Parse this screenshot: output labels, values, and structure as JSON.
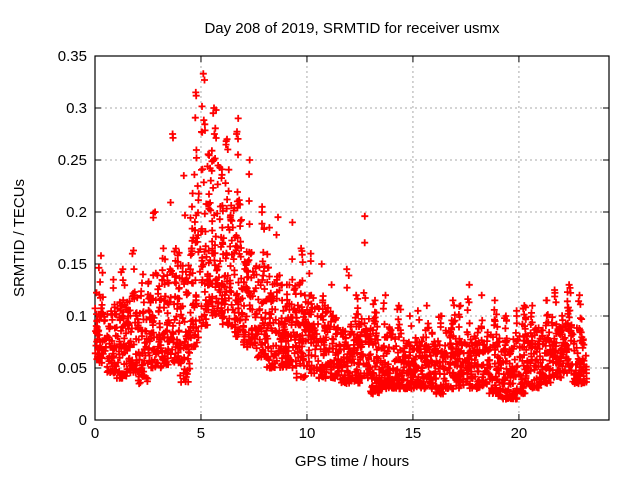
{
  "figure": {
    "title": "Day 208 of 2019, SRMTID for receiver usmx",
    "xlabel": "GPS time / hours",
    "ylabel": "SRMTID / TECUs"
  },
  "chart_data": {
    "type": "scatter",
    "title": "Day 208 of 2019, SRMTID for receiver usmx",
    "xlabel": "GPS time / hours",
    "ylabel": "SRMTID / TECUs",
    "marker": "plus",
    "marker_color": "#ff0000",
    "background": "#ffffff",
    "grid": true,
    "grid_color": "#a9a9a9",
    "legend": "none",
    "xlim": [
      0,
      24.25
    ],
    "ylim": [
      0,
      0.35
    ],
    "xticks": [
      0,
      5,
      10,
      15,
      20
    ],
    "yticks": [
      0,
      0.05,
      0.1,
      0.15,
      0.2,
      0.25,
      0.3,
      0.35
    ],
    "xtick_labels": [
      "0",
      "5",
      "10",
      "15",
      "20"
    ],
    "ytick_labels": [
      "0",
      "0.05",
      "0.1",
      "0.15",
      "0.2",
      "0.25",
      "0.3",
      "0.35"
    ],
    "description": "Dense cloud of ~2700 red plus markers. Activity is moderate 0-2.5 h (band 0.04-0.13), strongly enhanced 2.5-7.5 h with narrow columns peaking at 0.33 near 5.1 h, ~0.30 near 5.7 h, ~0.29 near 6.8 h and ~0.275 near 3.6 h, then decays 8-10 h; quiet 10-22 h with band 0.02-0.10, an isolated spike to ~0.196 at 12.8 h, a mild rise to ~0.125 near 22.3 h; data ends ~23.2 h with a lone low point ~0.02.",
    "profile_columns": [
      "t_start_h",
      "t_end_h",
      "n_points",
      "band_low_TECU",
      "band_high_TECU",
      "max_TECU"
    ],
    "profile": [
      [
        0.0,
        0.5,
        60,
        0.055,
        0.125,
        0.158
      ],
      [
        0.5,
        1.0,
        58,
        0.045,
        0.105,
        0.135
      ],
      [
        1.0,
        1.5,
        58,
        0.04,
        0.115,
        0.145
      ],
      [
        1.5,
        2.0,
        58,
        0.045,
        0.12,
        0.163
      ],
      [
        2.0,
        2.5,
        58,
        0.035,
        0.11,
        0.14
      ],
      [
        2.5,
        3.0,
        62,
        0.05,
        0.145,
        0.2
      ],
      [
        3.0,
        3.5,
        62,
        0.05,
        0.14,
        0.165
      ],
      [
        3.5,
        4.0,
        64,
        0.055,
        0.165,
        0.275
      ],
      [
        4.0,
        4.5,
        62,
        0.035,
        0.15,
        0.235
      ],
      [
        4.5,
        5.0,
        66,
        0.07,
        0.23,
        0.315
      ],
      [
        5.0,
        5.5,
        70,
        0.09,
        0.26,
        0.333
      ],
      [
        5.5,
        6.0,
        70,
        0.1,
        0.25,
        0.3
      ],
      [
        6.0,
        6.5,
        66,
        0.09,
        0.21,
        0.27
      ],
      [
        6.5,
        7.0,
        66,
        0.08,
        0.21,
        0.29
      ],
      [
        7.0,
        7.5,
        62,
        0.07,
        0.17,
        0.25
      ],
      [
        7.5,
        8.0,
        60,
        0.06,
        0.15,
        0.205
      ],
      [
        8.0,
        8.5,
        60,
        0.05,
        0.135,
        0.185
      ],
      [
        8.5,
        9.0,
        60,
        0.05,
        0.13,
        0.195
      ],
      [
        9.0,
        9.5,
        60,
        0.05,
        0.135,
        0.19
      ],
      [
        9.5,
        10.0,
        58,
        0.04,
        0.12,
        0.165
      ],
      [
        10.0,
        10.5,
        58,
        0.045,
        0.12,
        0.16
      ],
      [
        10.5,
        11.0,
        58,
        0.04,
        0.11,
        0.15
      ],
      [
        11.0,
        11.5,
        56,
        0.04,
        0.1,
        0.13
      ],
      [
        11.5,
        12.0,
        56,
        0.035,
        0.1,
        0.145
      ],
      [
        12.0,
        12.5,
        56,
        0.035,
        0.095,
        0.12
      ],
      [
        12.5,
        13.0,
        58,
        0.04,
        0.1,
        0.196
      ],
      [
        13.0,
        13.5,
        56,
        0.025,
        0.09,
        0.115
      ],
      [
        13.5,
        14.0,
        56,
        0.03,
        0.09,
        0.12
      ],
      [
        14.0,
        14.5,
        56,
        0.03,
        0.085,
        0.11
      ],
      [
        14.5,
        15.0,
        56,
        0.03,
        0.08,
        0.1
      ],
      [
        15.0,
        15.5,
        56,
        0.03,
        0.08,
        0.105
      ],
      [
        15.5,
        16.0,
        56,
        0.03,
        0.085,
        0.11
      ],
      [
        16.0,
        16.5,
        56,
        0.025,
        0.08,
        0.1
      ],
      [
        16.5,
        17.0,
        56,
        0.03,
        0.09,
        0.115
      ],
      [
        17.0,
        17.5,
        56,
        0.03,
        0.085,
        0.11
      ],
      [
        17.5,
        18.0,
        56,
        0.03,
        0.085,
        0.13
      ],
      [
        18.0,
        18.5,
        56,
        0.03,
        0.09,
        0.12
      ],
      [
        18.5,
        19.0,
        58,
        0.025,
        0.09,
        0.115
      ],
      [
        19.0,
        19.5,
        58,
        0.02,
        0.08,
        0.1
      ],
      [
        19.5,
        20.0,
        58,
        0.02,
        0.08,
        0.105
      ],
      [
        20.0,
        20.5,
        58,
        0.025,
        0.085,
        0.11
      ],
      [
        20.5,
        21.0,
        58,
        0.03,
        0.09,
        0.11
      ],
      [
        21.0,
        21.5,
        58,
        0.035,
        0.09,
        0.115
      ],
      [
        21.5,
        22.0,
        58,
        0.04,
        0.1,
        0.125
      ],
      [
        22.0,
        22.5,
        60,
        0.045,
        0.105,
        0.13
      ],
      [
        22.5,
        23.2,
        72,
        0.035,
        0.09,
        0.12
      ]
    ]
  }
}
